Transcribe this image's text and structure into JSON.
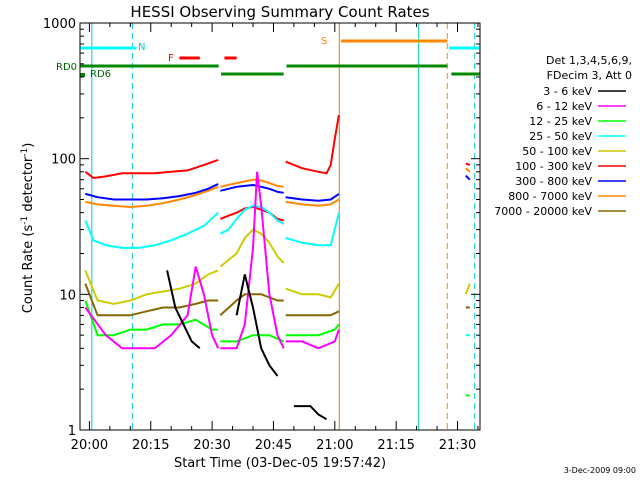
{
  "chart_data": {
    "type": "line",
    "title": "HESSI Observing Summary Count Rates",
    "ylabel_main": "Count Rate (s",
    "ylabel_sup1": "-1",
    "ylabel_mid": " detector",
    "ylabel_sup2": "-1",
    "ylabel_end": ")",
    "xlabel": "Start Time (03-Dec-05 19:57:42)",
    "y_scale": "log",
    "ylim": [
      1,
      1000
    ],
    "y_ticks": [
      {
        "value": 1,
        "label": "1"
      },
      {
        "value": 10,
        "label": "10"
      },
      {
        "value": 100,
        "label": "100"
      },
      {
        "value": 1000,
        "label": "1000"
      }
    ],
    "xlim_minutes": [
      -2.3,
      95.5
    ],
    "x_ticks": [
      {
        "minutes": 0,
        "label": "20:00"
      },
      {
        "minutes": 15,
        "label": "20:15"
      },
      {
        "minutes": 30,
        "label": "20:30"
      },
      {
        "minutes": 45,
        "label": "20:45"
      },
      {
        "minutes": 60,
        "label": "21:00"
      },
      {
        "minutes": 75,
        "label": "21:15"
      },
      {
        "minutes": 90,
        "label": "21:30"
      }
    ],
    "legend_title_1": "Det 1,3,4,5,6,9,",
    "legend_title_2": "FDecim 3, Att 0",
    "series": [
      {
        "name": "3 - 6 keV",
        "color": "#000000",
        "key": "s3_6",
        "segments": [
          [
            [
              19,
              15
            ],
            [
              21,
              8
            ],
            [
              23,
              6
            ],
            [
              25,
              4.5
            ],
            [
              27,
              4
            ]
          ],
          [
            [
              36,
              7
            ],
            [
              38,
              14
            ],
            [
              40,
              8
            ],
            [
              42,
              4
            ],
            [
              44,
              3
            ],
            [
              46,
              2.5
            ]
          ],
          [
            [
              50,
              1.5
            ],
            [
              52,
              1.5
            ],
            [
              54,
              1.5
            ],
            [
              56,
              1.3
            ],
            [
              58,
              1.2
            ]
          ]
        ]
      },
      {
        "name": "6 - 12 keV",
        "color": "#ff00ff",
        "key": "s6_12",
        "segments": [
          [
            [
              -1,
              8
            ],
            [
              4,
              5
            ],
            [
              8,
              4
            ],
            [
              12,
              4
            ],
            [
              16,
              4
            ],
            [
              20,
              5
            ],
            [
              24,
              7
            ],
            [
              26,
              16
            ],
            [
              28,
              10
            ],
            [
              30,
              5
            ],
            [
              31.5,
              4
            ]
          ],
          [
            [
              32,
              4
            ],
            [
              36,
              4
            ],
            [
              38,
              6
            ],
            [
              40,
              22
            ],
            [
              41,
              80
            ],
            [
              42,
              45
            ],
            [
              44,
              10
            ],
            [
              46,
              5
            ],
            [
              47.5,
              4
            ]
          ],
          [
            [
              48,
              4.5
            ],
            [
              52,
              4.5
            ],
            [
              56,
              4
            ],
            [
              60,
              4.5
            ],
            [
              61,
              5.5
            ]
          ]
        ]
      },
      {
        "name": "12 - 25 keV",
        "color": "#00ff00",
        "key": "s12_25",
        "segments": [
          [
            [
              -1,
              9
            ],
            [
              2,
              5
            ],
            [
              6,
              5
            ],
            [
              10,
              5.5
            ],
            [
              14,
              5.5
            ],
            [
              18,
              6
            ],
            [
              22,
              6
            ],
            [
              26,
              6.5
            ],
            [
              30,
              5.5
            ],
            [
              31.5,
              5.5
            ]
          ],
          [
            [
              32,
              4.5
            ],
            [
              36,
              4.5
            ],
            [
              40,
              5
            ],
            [
              44,
              5
            ],
            [
              47.5,
              4.5
            ]
          ],
          [
            [
              48,
              5
            ],
            [
              52,
              5
            ],
            [
              56,
              5
            ],
            [
              60,
              5.5
            ],
            [
              61,
              6
            ]
          ]
        ],
        "tail": [
          [
            92,
            1.8
          ],
          [
            93,
            1.8
          ]
        ]
      },
      {
        "name": "25 - 50 keV",
        "color": "#00ffff",
        "key": "s25_50",
        "segments": [
          [
            [
              -1,
              35
            ],
            [
              1,
              25
            ],
            [
              4,
              23
            ],
            [
              8,
              22
            ],
            [
              12,
              22
            ],
            [
              16,
              23
            ],
            [
              20,
              25
            ],
            [
              24,
              28
            ],
            [
              28,
              32
            ],
            [
              31.5,
              40
            ]
          ],
          [
            [
              32,
              28
            ],
            [
              34,
              30
            ],
            [
              36,
              36
            ],
            [
              38,
              42
            ],
            [
              40,
              45
            ],
            [
              42,
              44
            ],
            [
              44,
              40
            ],
            [
              46,
              35
            ],
            [
              47.5,
              33
            ]
          ],
          [
            [
              48,
              26
            ],
            [
              52,
              24
            ],
            [
              56,
              23
            ],
            [
              59,
              23
            ],
            [
              61,
              40
            ]
          ]
        ],
        "tail": [
          [
            92,
            5
          ],
          [
            93,
            5
          ]
        ]
      },
      {
        "name": "50 - 100 keV",
        "color": "#cccc00",
        "key": "s50_100",
        "segments": [
          [
            [
              -1,
              15
            ],
            [
              2,
              9
            ],
            [
              6,
              8.5
            ],
            [
              10,
              9
            ],
            [
              14,
              10
            ],
            [
              18,
              10.5
            ],
            [
              22,
              11
            ],
            [
              26,
              12
            ],
            [
              29,
              14
            ],
            [
              31.5,
              15
            ]
          ],
          [
            [
              32,
              16
            ],
            [
              36,
              20
            ],
            [
              38,
              26
            ],
            [
              40,
              30
            ],
            [
              42,
              28
            ],
            [
              44,
              24
            ],
            [
              46,
              19
            ],
            [
              47.5,
              17
            ]
          ],
          [
            [
              48,
              11
            ],
            [
              52,
              10
            ],
            [
              56,
              10
            ],
            [
              59,
              9.5
            ],
            [
              61,
              12
            ]
          ]
        ],
        "tail": [
          [
            92,
            10
          ],
          [
            93,
            12
          ]
        ]
      },
      {
        "name": "100 - 300 keV",
        "color": "#ff0000",
        "key": "s100_300",
        "segments": [
          [
            [
              -1,
              80
            ],
            [
              1,
              72
            ],
            [
              4,
              74
            ],
            [
              8,
              78
            ],
            [
              12,
              78
            ],
            [
              16,
              78
            ],
            [
              20,
              80
            ],
            [
              24,
              82
            ],
            [
              28,
              90
            ],
            [
              31.5,
              98
            ]
          ],
          [
            [
              32,
              36
            ],
            [
              34,
              38
            ],
            [
              36,
              40
            ],
            [
              38,
              43
            ],
            [
              40,
              44
            ],
            [
              42,
              42
            ],
            [
              44,
              40
            ],
            [
              46,
              36
            ],
            [
              47.5,
              35
            ]
          ],
          [
            [
              48,
              95
            ],
            [
              52,
              85
            ],
            [
              56,
              80
            ],
            [
              58,
              78
            ],
            [
              59,
              90
            ],
            [
              60,
              140
            ],
            [
              61,
              210
            ]
          ]
        ],
        "tail": [
          [
            92,
            92
          ],
          [
            93,
            90
          ]
        ]
      },
      {
        "name": "300 - 800 keV",
        "color": "#0000ff",
        "key": "s300_800",
        "segments": [
          [
            [
              -1,
              55
            ],
            [
              2,
              52
            ],
            [
              6,
              50
            ],
            [
              10,
              50
            ],
            [
              14,
              50
            ],
            [
              18,
              51
            ],
            [
              22,
              53
            ],
            [
              26,
              56
            ],
            [
              29,
              60
            ],
            [
              31.5,
              65
            ]
          ],
          [
            [
              32,
              58
            ],
            [
              36,
              62
            ],
            [
              38,
              63
            ],
            [
              40,
              64
            ],
            [
              42,
              62
            ],
            [
              44,
              60
            ],
            [
              46,
              57
            ],
            [
              47.5,
              56
            ]
          ],
          [
            [
              48,
              52
            ],
            [
              52,
              50
            ],
            [
              56,
              49
            ],
            [
              59,
              50
            ],
            [
              61,
              55
            ]
          ]
        ],
        "tail": [
          [
            92,
            75
          ],
          [
            93,
            70
          ]
        ]
      },
      {
        "name": "800 - 7000 keV",
        "color": "#ff8800",
        "key": "s800_7000",
        "segments": [
          [
            [
              -1,
              48
            ],
            [
              2,
              46
            ],
            [
              6,
              45
            ],
            [
              10,
              44
            ],
            [
              14,
              45
            ],
            [
              18,
              47
            ],
            [
              22,
              50
            ],
            [
              26,
              54
            ],
            [
              29,
              58
            ],
            [
              31.5,
              62
            ]
          ],
          [
            [
              32,
              62
            ],
            [
              36,
              66
            ],
            [
              38,
              68
            ],
            [
              40,
              70
            ],
            [
              42,
              69
            ],
            [
              44,
              66
            ],
            [
              46,
              63
            ],
            [
              47.5,
              62
            ]
          ],
          [
            [
              48,
              48
            ],
            [
              52,
              46
            ],
            [
              56,
              45
            ],
            [
              59,
              46
            ],
            [
              61,
              50
            ]
          ]
        ],
        "tail": [
          [
            92,
            85
          ],
          [
            93,
            80
          ]
        ]
      },
      {
        "name": "7000 - 20000 keV",
        "color": "#886600",
        "key": "s7000_20000",
        "segments": [
          [
            [
              -1,
              12
            ],
            [
              2,
              7
            ],
            [
              6,
              7
            ],
            [
              10,
              7
            ],
            [
              14,
              7.5
            ],
            [
              18,
              8
            ],
            [
              22,
              8
            ],
            [
              26,
              8.5
            ],
            [
              29,
              9
            ],
            [
              31.5,
              9
            ]
          ],
          [
            [
              32,
              7
            ],
            [
              36,
              9
            ],
            [
              38,
              10
            ],
            [
              40,
              10
            ],
            [
              42,
              10
            ],
            [
              44,
              9.5
            ],
            [
              46,
              9
            ],
            [
              47.5,
              9
            ]
          ],
          [
            [
              48,
              7
            ],
            [
              52,
              7
            ],
            [
              56,
              7
            ],
            [
              59,
              7
            ],
            [
              61,
              7.5
            ]
          ]
        ],
        "tail": [
          [
            92,
            8
          ],
          [
            93,
            8
          ]
        ]
      }
    ],
    "flags": {
      "RD0_label": "RD0",
      "RD6_label": "RD6",
      "N_label": "N",
      "F_label": "F",
      "S_label": "S"
    },
    "info_footer": "3-Dec-2009 09:00"
  }
}
